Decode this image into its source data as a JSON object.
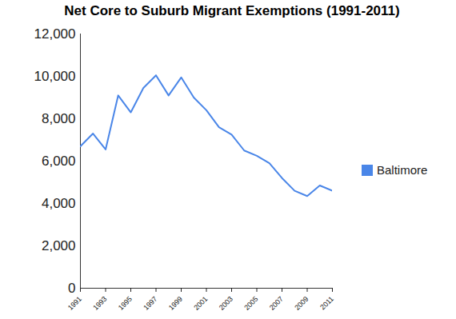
{
  "chart_data": {
    "type": "line",
    "title": "Net Core to Suburb Migrant Exemptions (1991-2011)",
    "x": [
      1991,
      1992,
      1993,
      1994,
      1995,
      1996,
      1997,
      1998,
      1999,
      2000,
      2001,
      2002,
      2003,
      2004,
      2005,
      2006,
      2007,
      2008,
      2009,
      2010,
      2011
    ],
    "series": [
      {
        "name": "Baltimore",
        "color": "#4a86e8",
        "values": [
          6700,
          7300,
          6550,
          9100,
          8300,
          9450,
          10050,
          9100,
          9950,
          9000,
          8400,
          7600,
          7250,
          6500,
          6250,
          5900,
          5200,
          4600,
          4350,
          4850,
          4600
        ]
      }
    ],
    "xlim": [
      1991,
      2011
    ],
    "xticks": [
      1991,
      1993,
      1995,
      1997,
      1999,
      2001,
      2003,
      2005,
      2007,
      2009,
      2011
    ],
    "ylim": [
      0,
      12000
    ],
    "yticks": [
      0,
      {
        "value": 2000,
        "label": "2,000"
      },
      {
        "value": 4000,
        "label": "4,000"
      },
      {
        "value": 6000,
        "label": "6,000"
      },
      {
        "value": 8000,
        "label": "8,000"
      },
      {
        "value": 10000,
        "label": "10,000"
      },
      {
        "value": 12000,
        "label": "12,000"
      }
    ],
    "legend": "right",
    "grid": false
  }
}
